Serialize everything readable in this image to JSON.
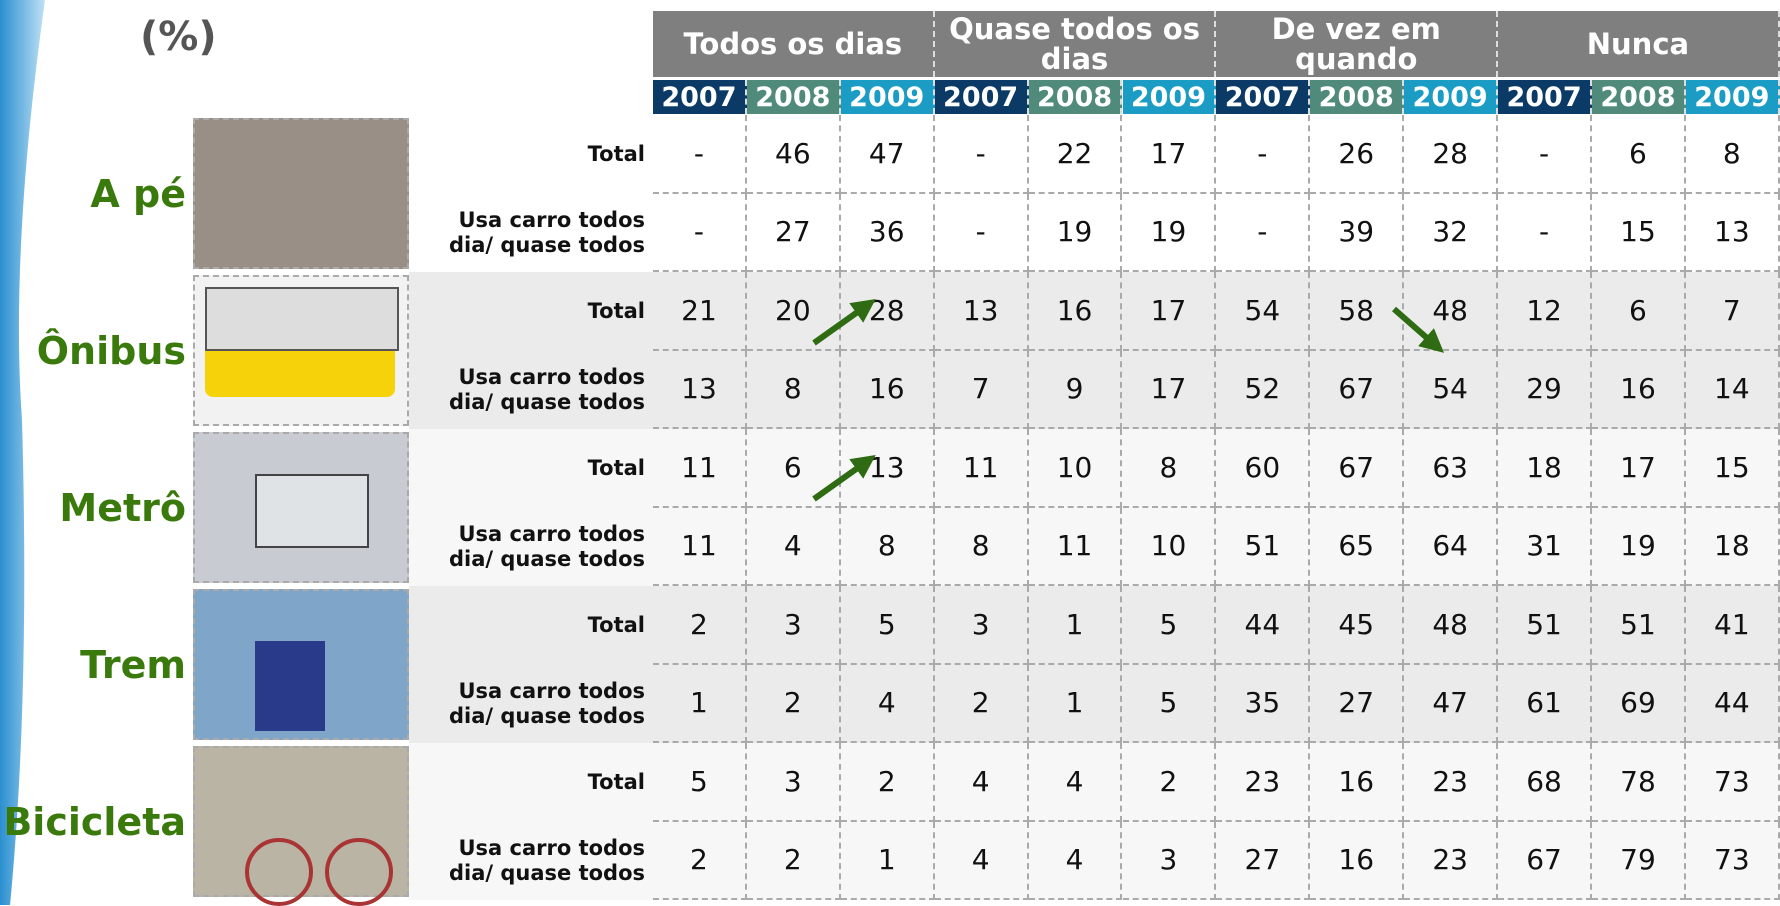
{
  "title": "(%)",
  "column_groups": [
    {
      "label": "Todos os dias",
      "years": [
        "2007",
        "2008",
        "2009"
      ]
    },
    {
      "label": "Quase todos os dias",
      "years": [
        "2007",
        "2008",
        "2009"
      ]
    },
    {
      "label": "De vez em quando",
      "years": [
        "2007",
        "2008",
        "2009"
      ]
    },
    {
      "label": "Nunca",
      "years": [
        "2007",
        "2008",
        "2009"
      ]
    }
  ],
  "modes": [
    {
      "label": "A pé",
      "rows": [
        {
          "label": "Total",
          "values": [
            "-",
            46,
            47,
            "-",
            22,
            17,
            "-",
            26,
            28,
            "-",
            6,
            8
          ]
        },
        {
          "label": "Usa carro todos dia/ quase todos",
          "values": [
            "-",
            27,
            36,
            "-",
            19,
            19,
            "-",
            39,
            32,
            "-",
            15,
            13
          ]
        }
      ]
    },
    {
      "label": "Ônibus",
      "rows": [
        {
          "label": "Total",
          "values": [
            21,
            20,
            28,
            13,
            16,
            17,
            54,
            58,
            48,
            12,
            6,
            7
          ]
        },
        {
          "label": "Usa carro todos dia/ quase todos",
          "values": [
            13,
            8,
            16,
            7,
            9,
            17,
            52,
            67,
            54,
            29,
            16,
            14
          ]
        }
      ]
    },
    {
      "label": "Metrô",
      "rows": [
        {
          "label": "Total",
          "values": [
            11,
            6,
            13,
            11,
            10,
            8,
            60,
            67,
            63,
            18,
            17,
            15
          ]
        },
        {
          "label": "Usa carro todos dia/ quase todos",
          "values": [
            11,
            4,
            8,
            8,
            11,
            10,
            51,
            65,
            64,
            31,
            19,
            18
          ]
        }
      ]
    },
    {
      "label": "Trem",
      "rows": [
        {
          "label": "Total",
          "values": [
            2,
            3,
            5,
            3,
            1,
            5,
            44,
            45,
            48,
            51,
            51,
            41
          ]
        },
        {
          "label": "Usa carro todos dia/ quase todos",
          "values": [
            1,
            2,
            4,
            2,
            1,
            5,
            35,
            27,
            47,
            61,
            69,
            44
          ]
        }
      ]
    },
    {
      "label": "Bicicleta",
      "rows": [
        {
          "label": "Total",
          "values": [
            5,
            3,
            2,
            4,
            4,
            2,
            23,
            16,
            23,
            68,
            78,
            73
          ]
        },
        {
          "label": "Usa carro todos dia/ quase todos",
          "values": [
            2,
            2,
            1,
            4,
            4,
            3,
            27,
            16,
            23,
            67,
            79,
            73
          ]
        }
      ]
    }
  ]
}
